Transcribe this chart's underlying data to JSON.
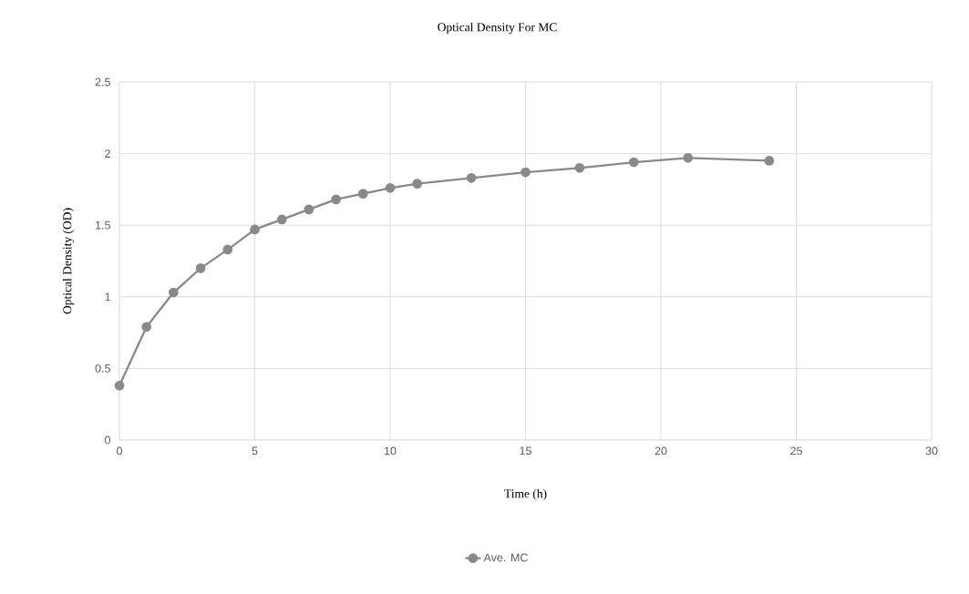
{
  "chart_data": {
    "type": "line",
    "title": "Optical Density For MC",
    "xlabel": "Time (h)",
    "ylabel": "Optical Density (OD)",
    "x": [
      0,
      1,
      2,
      3,
      4,
      5,
      6,
      7,
      8,
      9,
      10,
      11,
      13,
      15,
      17,
      19,
      21,
      24
    ],
    "series": [
      {
        "name": "Ave. MC",
        "color": "#898989",
        "values": [
          0.38,
          0.79,
          1.03,
          1.2,
          1.33,
          1.47,
          1.54,
          1.61,
          1.68,
          1.72,
          1.76,
          1.79,
          1.83,
          1.87,
          1.9,
          1.94,
          1.97,
          1.95
        ]
      }
    ],
    "xlim": [
      0,
      30
    ],
    "ylim": [
      0,
      2.5
    ],
    "xticks": [
      0,
      5,
      10,
      15,
      20,
      25,
      30
    ],
    "yticks": [
      0,
      0.5,
      1,
      1.5,
      2,
      2.5
    ],
    "grid": true,
    "legend": "bottom",
    "marker": "circle",
    "line_style": "solid"
  }
}
